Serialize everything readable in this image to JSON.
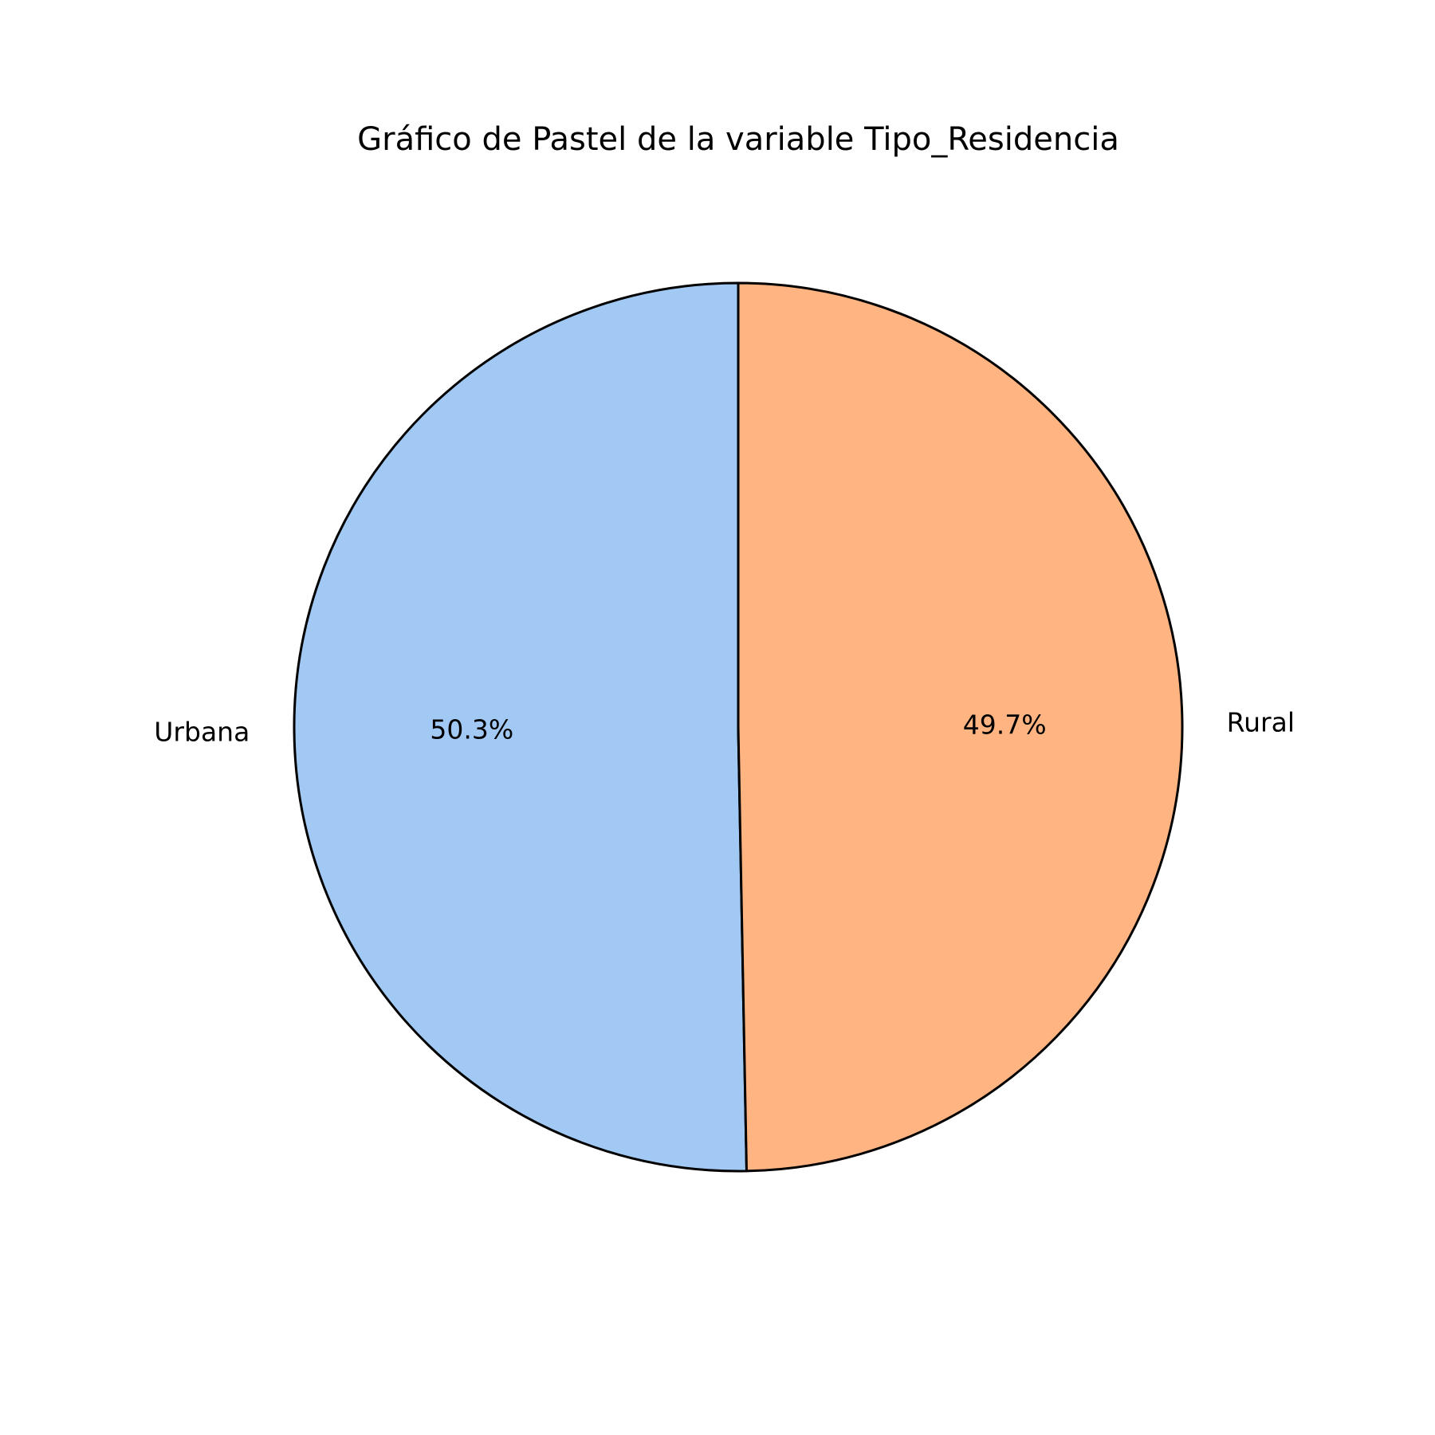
{
  "chart_data": {
    "type": "pie",
    "title": "Gráfico de Pastel de la variable Tipo_Residencia",
    "categories": [
      "Urbana",
      "Rural"
    ],
    "values": [
      50.3,
      49.7
    ],
    "value_labels": [
      "50.3%",
      "49.7%"
    ],
    "colors": [
      "#a1c9f4",
      "#ffb482"
    ],
    "edge_color": "#000000",
    "start_angle_deg": 90,
    "direction": "counterclockwise"
  }
}
